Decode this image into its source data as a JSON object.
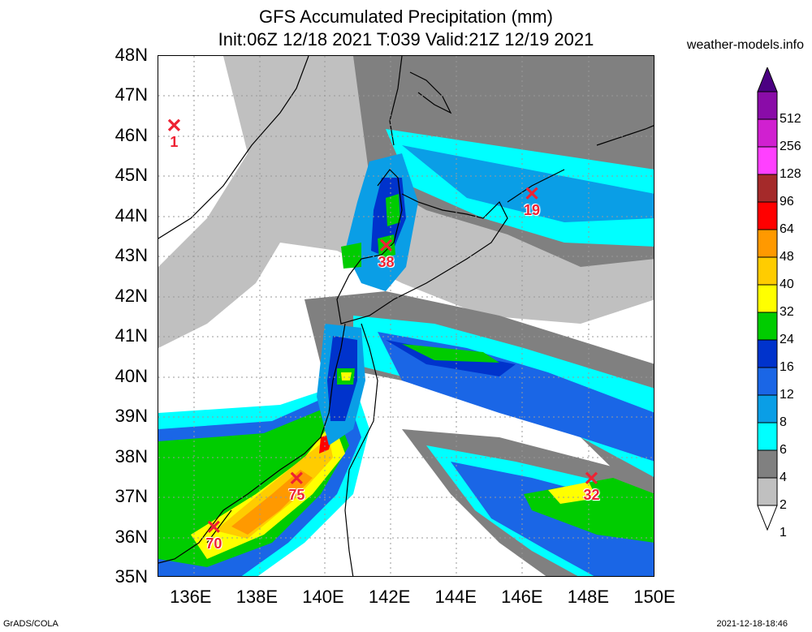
{
  "title": "GFS Accumulated Precipitation (mm)",
  "subtitle": "Init:06Z 12/18 2021 T:039 Valid:21Z 12/19 2021",
  "credit": "weather-models.info",
  "footer_left": "GrADS/COLA",
  "footer_right": "2021-12-18-18:46",
  "lat_labels": [
    "48N",
    "47N",
    "46N",
    "45N",
    "44N",
    "43N",
    "42N",
    "41N",
    "40N",
    "39N",
    "38N",
    "37N",
    "36N",
    "35N"
  ],
  "lon_labels": [
    "136E",
    "138E",
    "140E",
    "142E",
    "144E",
    "146E",
    "148E",
    "150E"
  ],
  "colorbar": {
    "labels": [
      "512",
      "256",
      "128",
      "96",
      "64",
      "48",
      "40",
      "32",
      "24",
      "16",
      "12",
      "8",
      "6",
      "4",
      "2",
      "1"
    ],
    "colors": [
      "#4b0082",
      "#8a0ca8",
      "#d020d0",
      "#ff40ff",
      "#a52a2a",
      "#ff0000",
      "#ff9900",
      "#ffcc00",
      "#ffff00",
      "#00cc00",
      "#0033cc",
      "#1a66e6",
      "#0a9ee6",
      "#00ffff",
      "#808080",
      "#c0c0c0",
      "#ffffff"
    ]
  },
  "markers": [
    {
      "id": "m1",
      "value": "1",
      "lon": 135.5,
      "lat": 46.2
    },
    {
      "id": "m2",
      "value": "19",
      "lon": 146.3,
      "lat": 44.5
    },
    {
      "id": "m3",
      "value": "38",
      "lon": 141.9,
      "lat": 43.2
    },
    {
      "id": "m4",
      "value": "75",
      "lon": 139.2,
      "lat": 37.4
    },
    {
      "id": "m5",
      "value": "32",
      "lon": 148.1,
      "lat": 37.4
    },
    {
      "id": "m6",
      "value": "70",
      "lon": 136.7,
      "lat": 36.2
    }
  ]
}
